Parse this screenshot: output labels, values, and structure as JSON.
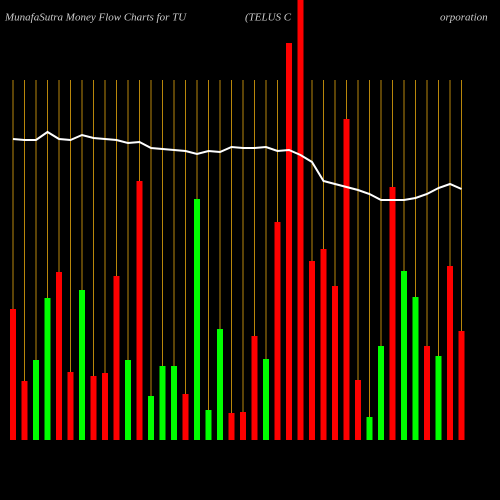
{
  "chart_data": {
    "type": "bar",
    "title": "MunafaSutra  Money Flow  Charts for TU",
    "company": [
      "(TELUS C",
      "orporation"
    ],
    "categories": [
      null,
      null,
      null,
      null,
      null,
      null,
      null,
      null,
      null,
      null,
      null,
      null,
      null,
      null,
      null,
      null,
      null,
      null,
      null,
      null,
      null,
      null,
      null,
      null,
      null,
      null,
      null,
      null,
      null,
      null,
      null,
      null,
      null,
      null,
      null,
      null,
      null,
      null,
      null,
      null
    ],
    "values": [
      131,
      59,
      80,
      142,
      168,
      68,
      150,
      64,
      67,
      164,
      80,
      259,
      44,
      74,
      74,
      46,
      241,
      30,
      111,
      27,
      28,
      104,
      81,
      218,
      397,
      440,
      179,
      191,
      154,
      321,
      60,
      23,
      94,
      253,
      169,
      143,
      94,
      84,
      174,
      109
    ],
    "colors": [
      "#ff0000",
      "#ff0000",
      "#00ff00",
      "#00ff00",
      "#ff0000",
      "#ff0000",
      "#00ff00",
      "#ff0000",
      "#ff0000",
      "#ff0000",
      "#00ff00",
      "#ff0000",
      "#00ff00",
      "#00ff00",
      "#00ff00",
      "#ff0000",
      "#00ff00",
      "#00ff00",
      "#00ff00",
      "#ff0000",
      "#ff0000",
      "#ff0000",
      "#00ff00",
      "#ff0000",
      "#ff0000",
      "#ff0000",
      "#ff0000",
      "#ff0000",
      "#ff0000",
      "#ff0000",
      "#ff0000",
      "#00ff00",
      "#00ff00",
      "#ff0000",
      "#00ff00",
      "#00ff00",
      "#ff0000",
      "#00ff00",
      "#ff0000",
      "#ff0000"
    ],
    "line": {
      "color": "#ffffff",
      "values": [
        301,
        300,
        300,
        308,
        301,
        300,
        305,
        302,
        301,
        300,
        297,
        298,
        292,
        291,
        290,
        289,
        286,
        289,
        288,
        293,
        292,
        292,
        293,
        289,
        290,
        285,
        278,
        259,
        256,
        253,
        250,
        246,
        240,
        240,
        240,
        242,
        246,
        252,
        256,
        251
      ]
    },
    "grid_color": "#b8860b",
    "ylim": [
      0,
      440
    ]
  }
}
